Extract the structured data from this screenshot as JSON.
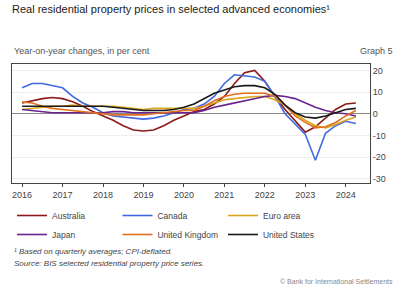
{
  "chart_data": {
    "type": "line",
    "title": "Real residential property prices in selected advanced economies¹",
    "subtitle": "Year-on-year changes, in per cent",
    "annotations": [
      "Graph 5",
      "¹ Based on quarterly averages; CPI-deflated.",
      "Source: BIS selected residential property price series.",
      "© Bank for International Settlements"
    ],
    "x": [
      2016,
      2016.25,
      2016.5,
      2016.75,
      2017,
      2017.25,
      2017.5,
      2017.75,
      2018,
      2018.25,
      2018.5,
      2018.75,
      2019,
      2019.25,
      2019.5,
      2019.75,
      2020,
      2020.25,
      2020.5,
      2020.75,
      2021,
      2021.25,
      2021.5,
      2021.75,
      2022,
      2022.25,
      2022.5,
      2022.75,
      2023,
      2023.25,
      2023.5,
      2023.75,
      2024,
      2024.25
    ],
    "series": [
      {
        "name": "Australia",
        "color": "#8B1A1A",
        "values": [
          5.0,
          6.0,
          7.0,
          7.5,
          7.0,
          5.5,
          3.5,
          1.0,
          -1.0,
          -3.0,
          -5.5,
          -7.5,
          -8.0,
          -7.5,
          -5.5,
          -3.0,
          -1.0,
          1.0,
          2.0,
          4.5,
          8.0,
          14.0,
          19.0,
          20.0,
          15.0,
          8.0,
          2.0,
          -3.5,
          -8.5,
          -6.0,
          -2.0,
          2.0,
          4.5,
          5.0
        ]
      },
      {
        "name": "Canada",
        "color": "#4169E1",
        "values": [
          12.0,
          14.0,
          14.0,
          13.0,
          12.0,
          8.0,
          5.0,
          3.0,
          0.5,
          -1.0,
          -1.5,
          -2.0,
          -2.5,
          -2.0,
          -1.0,
          0.5,
          2.0,
          2.5,
          4.5,
          8.0,
          14.0,
          18.0,
          17.5,
          17.0,
          15.0,
          8.0,
          0.0,
          -5.0,
          -9.5,
          -21.5,
          -9.0,
          -5.5,
          -3.5,
          -4.5
        ]
      },
      {
        "name": "Euro area",
        "color": "#DAA520",
        "values": [
          2.0,
          2.5,
          3.0,
          3.5,
          3.5,
          4.0,
          3.5,
          3.5,
          3.5,
          3.5,
          3.0,
          2.5,
          2.0,
          2.5,
          2.5,
          2.5,
          2.5,
          2.5,
          3.5,
          5.0,
          6.5,
          7.0,
          7.5,
          8.0,
          8.0,
          6.5,
          4.0,
          0.0,
          -3.0,
          -5.5,
          -6.5,
          -5.0,
          -3.0,
          -1.5
        ]
      },
      {
        "name": "Japan",
        "color": "#6B238E",
        "values": [
          2.0,
          1.5,
          1.0,
          0.5,
          0.5,
          0.5,
          0.5,
          0.5,
          0.5,
          1.0,
          1.0,
          0.5,
          0.5,
          0.5,
          0.5,
          0.5,
          0.5,
          0.5,
          1.5,
          3.0,
          4.0,
          5.0,
          6.0,
          7.0,
          8.0,
          8.5,
          8.0,
          7.0,
          5.0,
          3.0,
          1.5,
          0.5,
          0.0,
          -1.0
        ]
      },
      {
        "name": "United Kingdom",
        "color": "#E07020",
        "values": [
          5.5,
          5.0,
          3.5,
          2.5,
          2.0,
          1.5,
          1.0,
          0.5,
          0.0,
          -0.5,
          -0.5,
          -0.5,
          -0.5,
          0.0,
          0.5,
          1.0,
          1.5,
          1.5,
          3.5,
          6.0,
          8.0,
          9.0,
          9.5,
          9.5,
          9.5,
          8.0,
          4.0,
          -1.0,
          -4.0,
          -6.5,
          -6.0,
          -4.0,
          -1.0,
          1.5
        ]
      },
      {
        "name": "United States",
        "color": "#1a1a1a",
        "values": [
          3.5,
          3.5,
          3.5,
          3.5,
          3.5,
          3.5,
          3.5,
          3.5,
          3.5,
          3.0,
          2.5,
          2.0,
          1.5,
          1.5,
          1.5,
          2.0,
          3.0,
          4.5,
          7.0,
          9.5,
          11.0,
          12.5,
          13.0,
          13.0,
          12.0,
          9.0,
          4.0,
          0.5,
          -1.5,
          -2.0,
          -1.0,
          0.5,
          2.0,
          2.5
        ]
      }
    ],
    "xlim": [
      2015.75,
      2024.6
    ],
    "xticks": [
      2016,
      2017,
      2018,
      2019,
      2020,
      2021,
      2022,
      2023,
      2024
    ],
    "ylim": [
      -32,
      23
    ],
    "yticks": [
      -30,
      -20,
      -10,
      0,
      10,
      20
    ],
    "grid": "y",
    "legend": "bottom"
  }
}
